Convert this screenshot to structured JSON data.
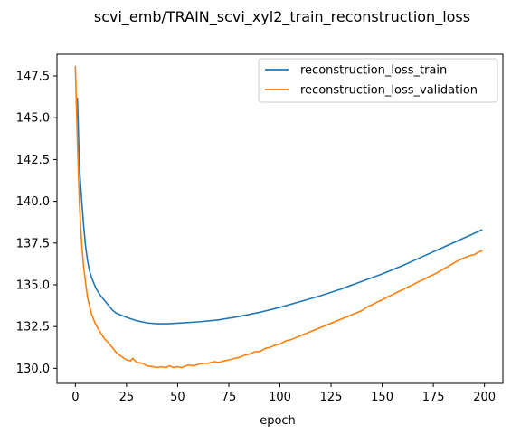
{
  "chart_data": {
    "type": "line",
    "title": "scvi_emb/TRAIN_scvi_xyl2_train_reconstruction_loss",
    "xlabel": "epoch",
    "ylabel": "",
    "xlim": [
      -9,
      209
    ],
    "ylim": [
      129.1,
      148.8
    ],
    "x_ticks": [
      0,
      25,
      50,
      75,
      100,
      125,
      150,
      175,
      200
    ],
    "y_ticks": [
      130.0,
      132.5,
      135.0,
      137.5,
      140.0,
      142.5,
      145.0,
      147.5
    ],
    "y_tick_labels": [
      "130.0",
      "132.5",
      "135.0",
      "137.5",
      "140.0",
      "142.5",
      "145.0",
      "147.5"
    ],
    "grid": false,
    "legend_position": "upper-right",
    "series": [
      {
        "name": "reconstruction_loss_train",
        "color": "#1f77b4",
        "x": [
          1,
          2,
          3,
          4,
          5,
          6,
          7,
          8,
          10,
          12,
          14,
          16,
          18,
          20,
          25,
          30,
          35,
          40,
          45,
          50,
          60,
          70,
          80,
          90,
          100,
          110,
          120,
          130,
          140,
          150,
          160,
          170,
          180,
          190,
          199
        ],
        "y": [
          146.2,
          142.0,
          140.2,
          138.6,
          137.3,
          136.4,
          135.8,
          135.4,
          134.8,
          134.4,
          134.1,
          133.8,
          133.5,
          133.3,
          133.05,
          132.85,
          132.72,
          132.67,
          132.67,
          132.7,
          132.78,
          132.9,
          133.1,
          133.35,
          133.65,
          134.0,
          134.35,
          134.75,
          135.2,
          135.65,
          136.15,
          136.7,
          137.25,
          137.8,
          138.3
        ]
      },
      {
        "name": "reconstruction_loss_validation",
        "color": "#ff7f0e",
        "x": [
          0,
          1,
          2,
          3,
          4,
          5,
          6,
          7,
          8,
          10,
          12,
          14,
          16,
          18,
          20,
          22,
          25,
          27,
          28,
          30,
          33,
          35,
          38,
          40,
          42,
          44,
          46,
          48,
          50,
          52,
          55,
          58,
          60,
          63,
          65,
          68,
          70,
          73,
          75,
          78,
          80,
          83,
          85,
          88,
          90,
          93,
          95,
          98,
          100,
          103,
          105,
          108,
          110,
          113,
          115,
          118,
          120,
          123,
          125,
          128,
          130,
          133,
          135,
          138,
          140,
          143,
          145,
          148,
          150,
          153,
          155,
          158,
          160,
          163,
          165,
          168,
          170,
          173,
          175,
          178,
          180,
          183,
          185,
          188,
          190,
          193,
          195,
          197,
          199
        ],
        "y": [
          148.1,
          143.5,
          139.8,
          137.6,
          136.1,
          135.1,
          134.2,
          133.7,
          133.2,
          132.6,
          132.2,
          131.8,
          131.55,
          131.25,
          130.95,
          130.75,
          130.5,
          130.45,
          130.6,
          130.35,
          130.3,
          130.15,
          130.1,
          130.05,
          130.1,
          130.05,
          130.15,
          130.05,
          130.1,
          130.05,
          130.2,
          130.15,
          130.25,
          130.3,
          130.3,
          130.4,
          130.35,
          130.45,
          130.5,
          130.6,
          130.65,
          130.8,
          130.85,
          131.0,
          131.0,
          131.2,
          131.25,
          131.4,
          131.45,
          131.65,
          131.7,
          131.85,
          131.95,
          132.1,
          132.2,
          132.35,
          132.45,
          132.6,
          132.7,
          132.85,
          132.95,
          133.1,
          133.2,
          133.35,
          133.45,
          133.7,
          133.8,
          134.0,
          134.1,
          134.3,
          134.4,
          134.6,
          134.7,
          134.9,
          135.0,
          135.2,
          135.3,
          135.5,
          135.6,
          135.8,
          135.95,
          136.15,
          136.3,
          136.5,
          136.6,
          136.75,
          136.8,
          136.95,
          137.05
        ]
      }
    ]
  }
}
